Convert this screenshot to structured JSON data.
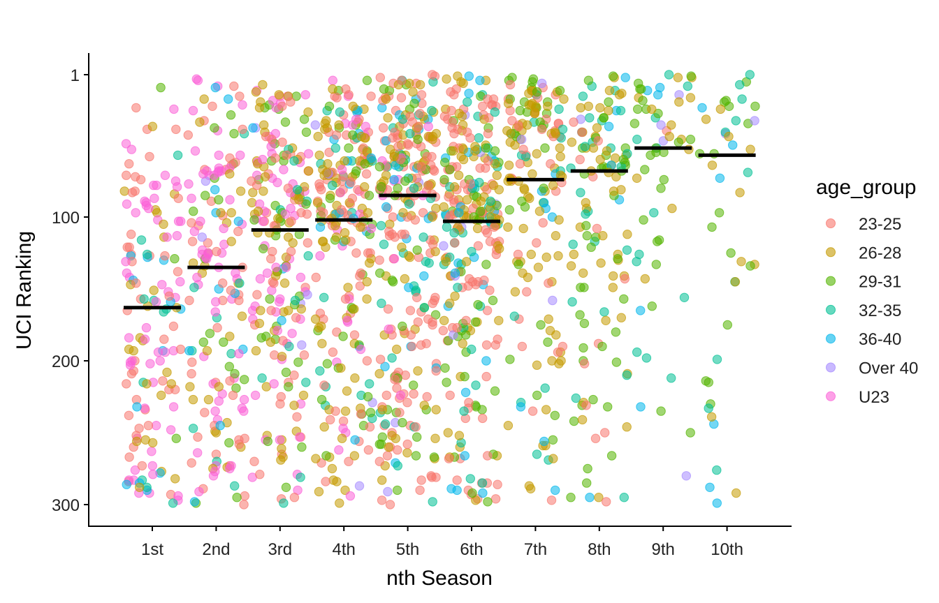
{
  "chart_data": {
    "type": "scatter",
    "subtype": "jittered strip plot with median markers",
    "xlabel": "nth Season",
    "ylabel": "UCI Ranking",
    "categories": [
      "1st",
      "2nd",
      "3rd",
      "4th",
      "5th",
      "6th",
      "7th",
      "8th",
      "9th",
      "10th"
    ],
    "y_axis": {
      "range": [
        1,
        300
      ],
      "reversed": true,
      "ticks": [
        1,
        100,
        200,
        300
      ]
    },
    "grid": false,
    "legend": {
      "title": "age_group",
      "position": "right"
    },
    "groups": [
      {
        "name": "23-25",
        "color": "#F8766D"
      },
      {
        "name": "26-28",
        "color": "#C49A00"
      },
      {
        "name": "29-31",
        "color": "#53B400"
      },
      {
        "name": "32-35",
        "color": "#00C094"
      },
      {
        "name": "36-40",
        "color": "#00B6EB"
      },
      {
        "name": "Over 40",
        "color": "#A58AFF"
      },
      {
        "name": "U23",
        "color": "#FB61D7"
      }
    ],
    "medians": [
      163,
      135,
      109,
      102,
      85,
      103,
      74,
      68,
      52,
      57
    ],
    "point_counts_approx": [
      150,
      170,
      220,
      250,
      300,
      280,
      170,
      130,
      60,
      45
    ],
    "group_mix_per_season": [
      [
        0.26,
        0.14,
        0.07,
        0.06,
        0.04,
        0.0,
        0.43
      ],
      [
        0.24,
        0.17,
        0.1,
        0.06,
        0.05,
        0.01,
        0.37
      ],
      [
        0.28,
        0.27,
        0.12,
        0.06,
        0.03,
        0.01,
        0.23
      ],
      [
        0.33,
        0.25,
        0.15,
        0.09,
        0.07,
        0.01,
        0.1
      ],
      [
        0.38,
        0.27,
        0.14,
        0.14,
        0.04,
        0.01,
        0.02
      ],
      [
        0.35,
        0.25,
        0.15,
        0.14,
        0.08,
        0.03,
        0.0
      ],
      [
        0.2,
        0.38,
        0.22,
        0.11,
        0.06,
        0.03,
        0.0
      ],
      [
        0.12,
        0.38,
        0.28,
        0.12,
        0.07,
        0.03,
        0.0
      ],
      [
        0.02,
        0.38,
        0.32,
        0.16,
        0.08,
        0.04,
        0.0
      ],
      [
        0.0,
        0.28,
        0.32,
        0.26,
        0.09,
        0.05,
        0.0
      ]
    ]
  }
}
